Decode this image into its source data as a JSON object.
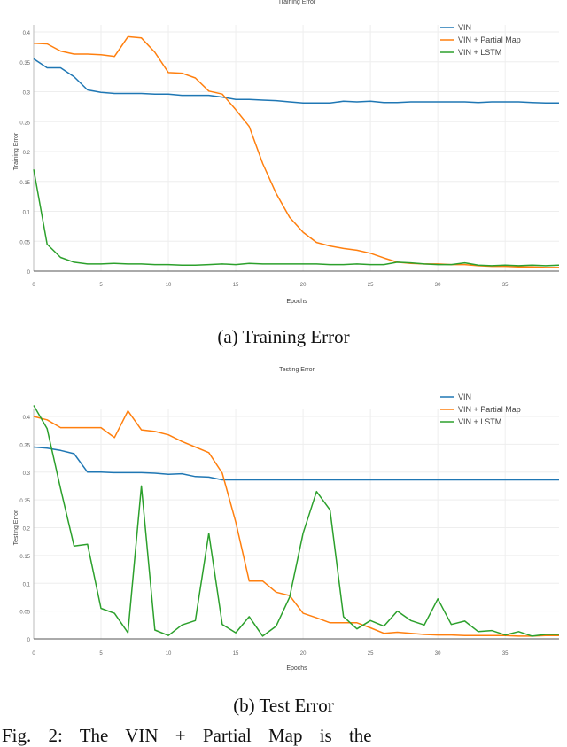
{
  "chart_data": [
    {
      "type": "line",
      "title": "Training Error",
      "xlabel": "Epochs",
      "ylabel": "Training Error",
      "caption": "(a) Training Error",
      "xlim": [
        0,
        39
      ],
      "ylim": [
        0,
        0.4
      ],
      "xticks": [
        0,
        5,
        10,
        15,
        20,
        25,
        30,
        35
      ],
      "yticks": [
        0,
        0.05,
        0.1,
        0.15,
        0.2,
        0.25,
        0.3,
        0.35,
        0.4
      ],
      "grid": true,
      "legend": "top-right",
      "x": [
        0,
        1,
        2,
        3,
        4,
        5,
        6,
        7,
        8,
        9,
        10,
        11,
        12,
        13,
        14,
        15,
        16,
        17,
        18,
        19,
        20,
        21,
        22,
        23,
        24,
        25,
        26,
        27,
        28,
        29,
        30,
        31,
        32,
        33,
        34,
        35,
        36,
        37,
        38,
        39
      ],
      "series": [
        {
          "name": "VIN",
          "color": "#1f77b4",
          "values": [
            0.355,
            0.34,
            0.34,
            0.325,
            0.303,
            0.299,
            0.297,
            0.297,
            0.297,
            0.296,
            0.296,
            0.294,
            0.294,
            0.294,
            0.291,
            0.287,
            0.287,
            0.286,
            0.285,
            0.283,
            0.281,
            0.281,
            0.281,
            0.284,
            0.283,
            0.284,
            0.282,
            0.282,
            0.283,
            0.283,
            0.283,
            0.283,
            0.283,
            0.282,
            0.283,
            0.283,
            0.283,
            0.282,
            0.281,
            0.281
          ]
        },
        {
          "name": "VIN + Partial Map",
          "color": "#ff7f0e",
          "values": [
            0.381,
            0.38,
            0.368,
            0.363,
            0.363,
            0.362,
            0.359,
            0.392,
            0.39,
            0.366,
            0.332,
            0.331,
            0.323,
            0.301,
            0.296,
            0.27,
            0.242,
            0.18,
            0.13,
            0.09,
            0.065,
            0.048,
            0.042,
            0.038,
            0.035,
            0.03,
            0.022,
            0.015,
            0.013,
            0.012,
            0.012,
            0.011,
            0.011,
            0.009,
            0.008,
            0.008,
            0.007,
            0.007,
            0.006,
            0.006
          ]
        },
        {
          "name": "VIN + LSTM",
          "color": "#2ca02c",
          "values": [
            0.17,
            0.045,
            0.023,
            0.015,
            0.012,
            0.012,
            0.013,
            0.012,
            0.012,
            0.011,
            0.011,
            0.01,
            0.01,
            0.011,
            0.012,
            0.011,
            0.013,
            0.012,
            0.012,
            0.012,
            0.012,
            0.012,
            0.011,
            0.011,
            0.012,
            0.011,
            0.011,
            0.015,
            0.014,
            0.012,
            0.011,
            0.011,
            0.014,
            0.01,
            0.009,
            0.01,
            0.009,
            0.01,
            0.009,
            0.01
          ]
        }
      ]
    },
    {
      "type": "line",
      "title": "Testing Error",
      "xlabel": "Epochs",
      "ylabel": "Testing Error",
      "caption": "(b) Test Error",
      "xlim": [
        0,
        39
      ],
      "ylim": [
        0,
        0.4
      ],
      "xticks": [
        0,
        5,
        10,
        15,
        20,
        25,
        30,
        35
      ],
      "yticks": [
        0,
        0.05,
        0.1,
        0.15,
        0.2,
        0.25,
        0.3,
        0.35,
        0.4
      ],
      "grid": true,
      "legend": "top-right",
      "x": [
        0,
        1,
        2,
        3,
        4,
        5,
        6,
        7,
        8,
        9,
        10,
        11,
        12,
        13,
        14,
        15,
        16,
        17,
        18,
        19,
        20,
        21,
        22,
        23,
        24,
        25,
        26,
        27,
        28,
        29,
        30,
        31,
        32,
        33,
        34,
        35,
        36,
        37,
        38,
        39
      ],
      "series": [
        {
          "name": "VIN",
          "color": "#1f77b4",
          "values": [
            0.345,
            0.343,
            0.339,
            0.333,
            0.3,
            0.3,
            0.299,
            0.299,
            0.299,
            0.298,
            0.296,
            0.297,
            0.292,
            0.291,
            0.286,
            0.286,
            0.286,
            0.286,
            0.286,
            0.286,
            0.286,
            0.286,
            0.286,
            0.286,
            0.286,
            0.286,
            0.286,
            0.286,
            0.286,
            0.286,
            0.286,
            0.286,
            0.286,
            0.286,
            0.286,
            0.286,
            0.286,
            0.286,
            0.286,
            0.286
          ]
        },
        {
          "name": "VIN + Partial Map",
          "color": "#ff7f0e",
          "values": [
            0.4,
            0.394,
            0.38,
            0.38,
            0.38,
            0.38,
            0.362,
            0.41,
            0.376,
            0.373,
            0.367,
            0.355,
            0.345,
            0.335,
            0.298,
            0.21,
            0.104,
            0.104,
            0.084,
            0.078,
            0.046,
            0.038,
            0.029,
            0.029,
            0.029,
            0.02,
            0.01,
            0.012,
            0.01,
            0.008,
            0.007,
            0.007,
            0.006,
            0.006,
            0.006,
            0.006,
            0.005,
            0.005,
            0.006,
            0.006
          ]
        },
        {
          "name": "VIN + LSTM",
          "color": "#2ca02c",
          "values": [
            0.42,
            0.378,
            0.27,
            0.167,
            0.17,
            0.055,
            0.046,
            0.011,
            0.275,
            0.016,
            0.006,
            0.025,
            0.033,
            0.19,
            0.026,
            0.011,
            0.04,
            0.005,
            0.023,
            0.075,
            0.19,
            0.265,
            0.232,
            0.04,
            0.018,
            0.033,
            0.023,
            0.05,
            0.033,
            0.025,
            0.072,
            0.026,
            0.032,
            0.013,
            0.015,
            0.007,
            0.013,
            0.005,
            0.008,
            0.008
          ]
        }
      ]
    }
  ],
  "figure_caption": "Fig. 2: The VIN + Partial Map is the"
}
